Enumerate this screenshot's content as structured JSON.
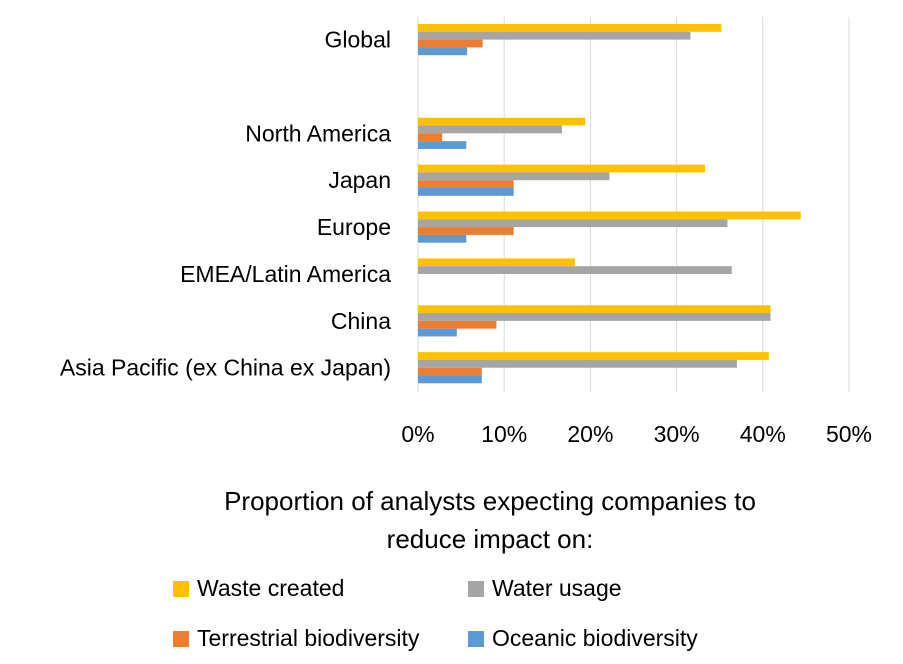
{
  "chart_data": {
    "type": "bar",
    "orientation": "horizontal",
    "categories": [
      "Global",
      "",
      "North America",
      "Japan",
      "Europe",
      "EMEA/Latin America",
      "China",
      "Asia Pacific (ex China ex Japan)"
    ],
    "series": [
      {
        "name": "Waste created",
        "color": "#FFC000",
        "values": [
          35.2,
          null,
          19.4,
          33.3,
          44.4,
          18.2,
          40.9,
          40.7
        ]
      },
      {
        "name": "Water usage",
        "color": "#A5A5A5",
        "values": [
          31.6,
          null,
          16.7,
          22.2,
          35.9,
          36.4,
          40.9,
          37.0
        ]
      },
      {
        "name": "Terrestrial biodiversity",
        "color": "#ED7D31",
        "values": [
          7.5,
          null,
          2.8,
          11.1,
          11.1,
          0,
          9.1,
          7.4
        ]
      },
      {
        "name": "Oceanic biodiversity",
        "color": "#5B9BD5",
        "values": [
          5.7,
          null,
          5.6,
          11.1,
          5.6,
          0,
          4.5,
          7.4
        ]
      }
    ],
    "xlim": [
      0,
      50
    ],
    "xticks": [
      "0%",
      "10%",
      "20%",
      "30%",
      "40%",
      "50%"
    ],
    "xticks_values": [
      0,
      10,
      20,
      30,
      40,
      50
    ],
    "grid": true,
    "legend_position": "bottom",
    "xlabel_lines": [
      "Proportion of analysts expecting companies to",
      "reduce impact on:"
    ]
  }
}
